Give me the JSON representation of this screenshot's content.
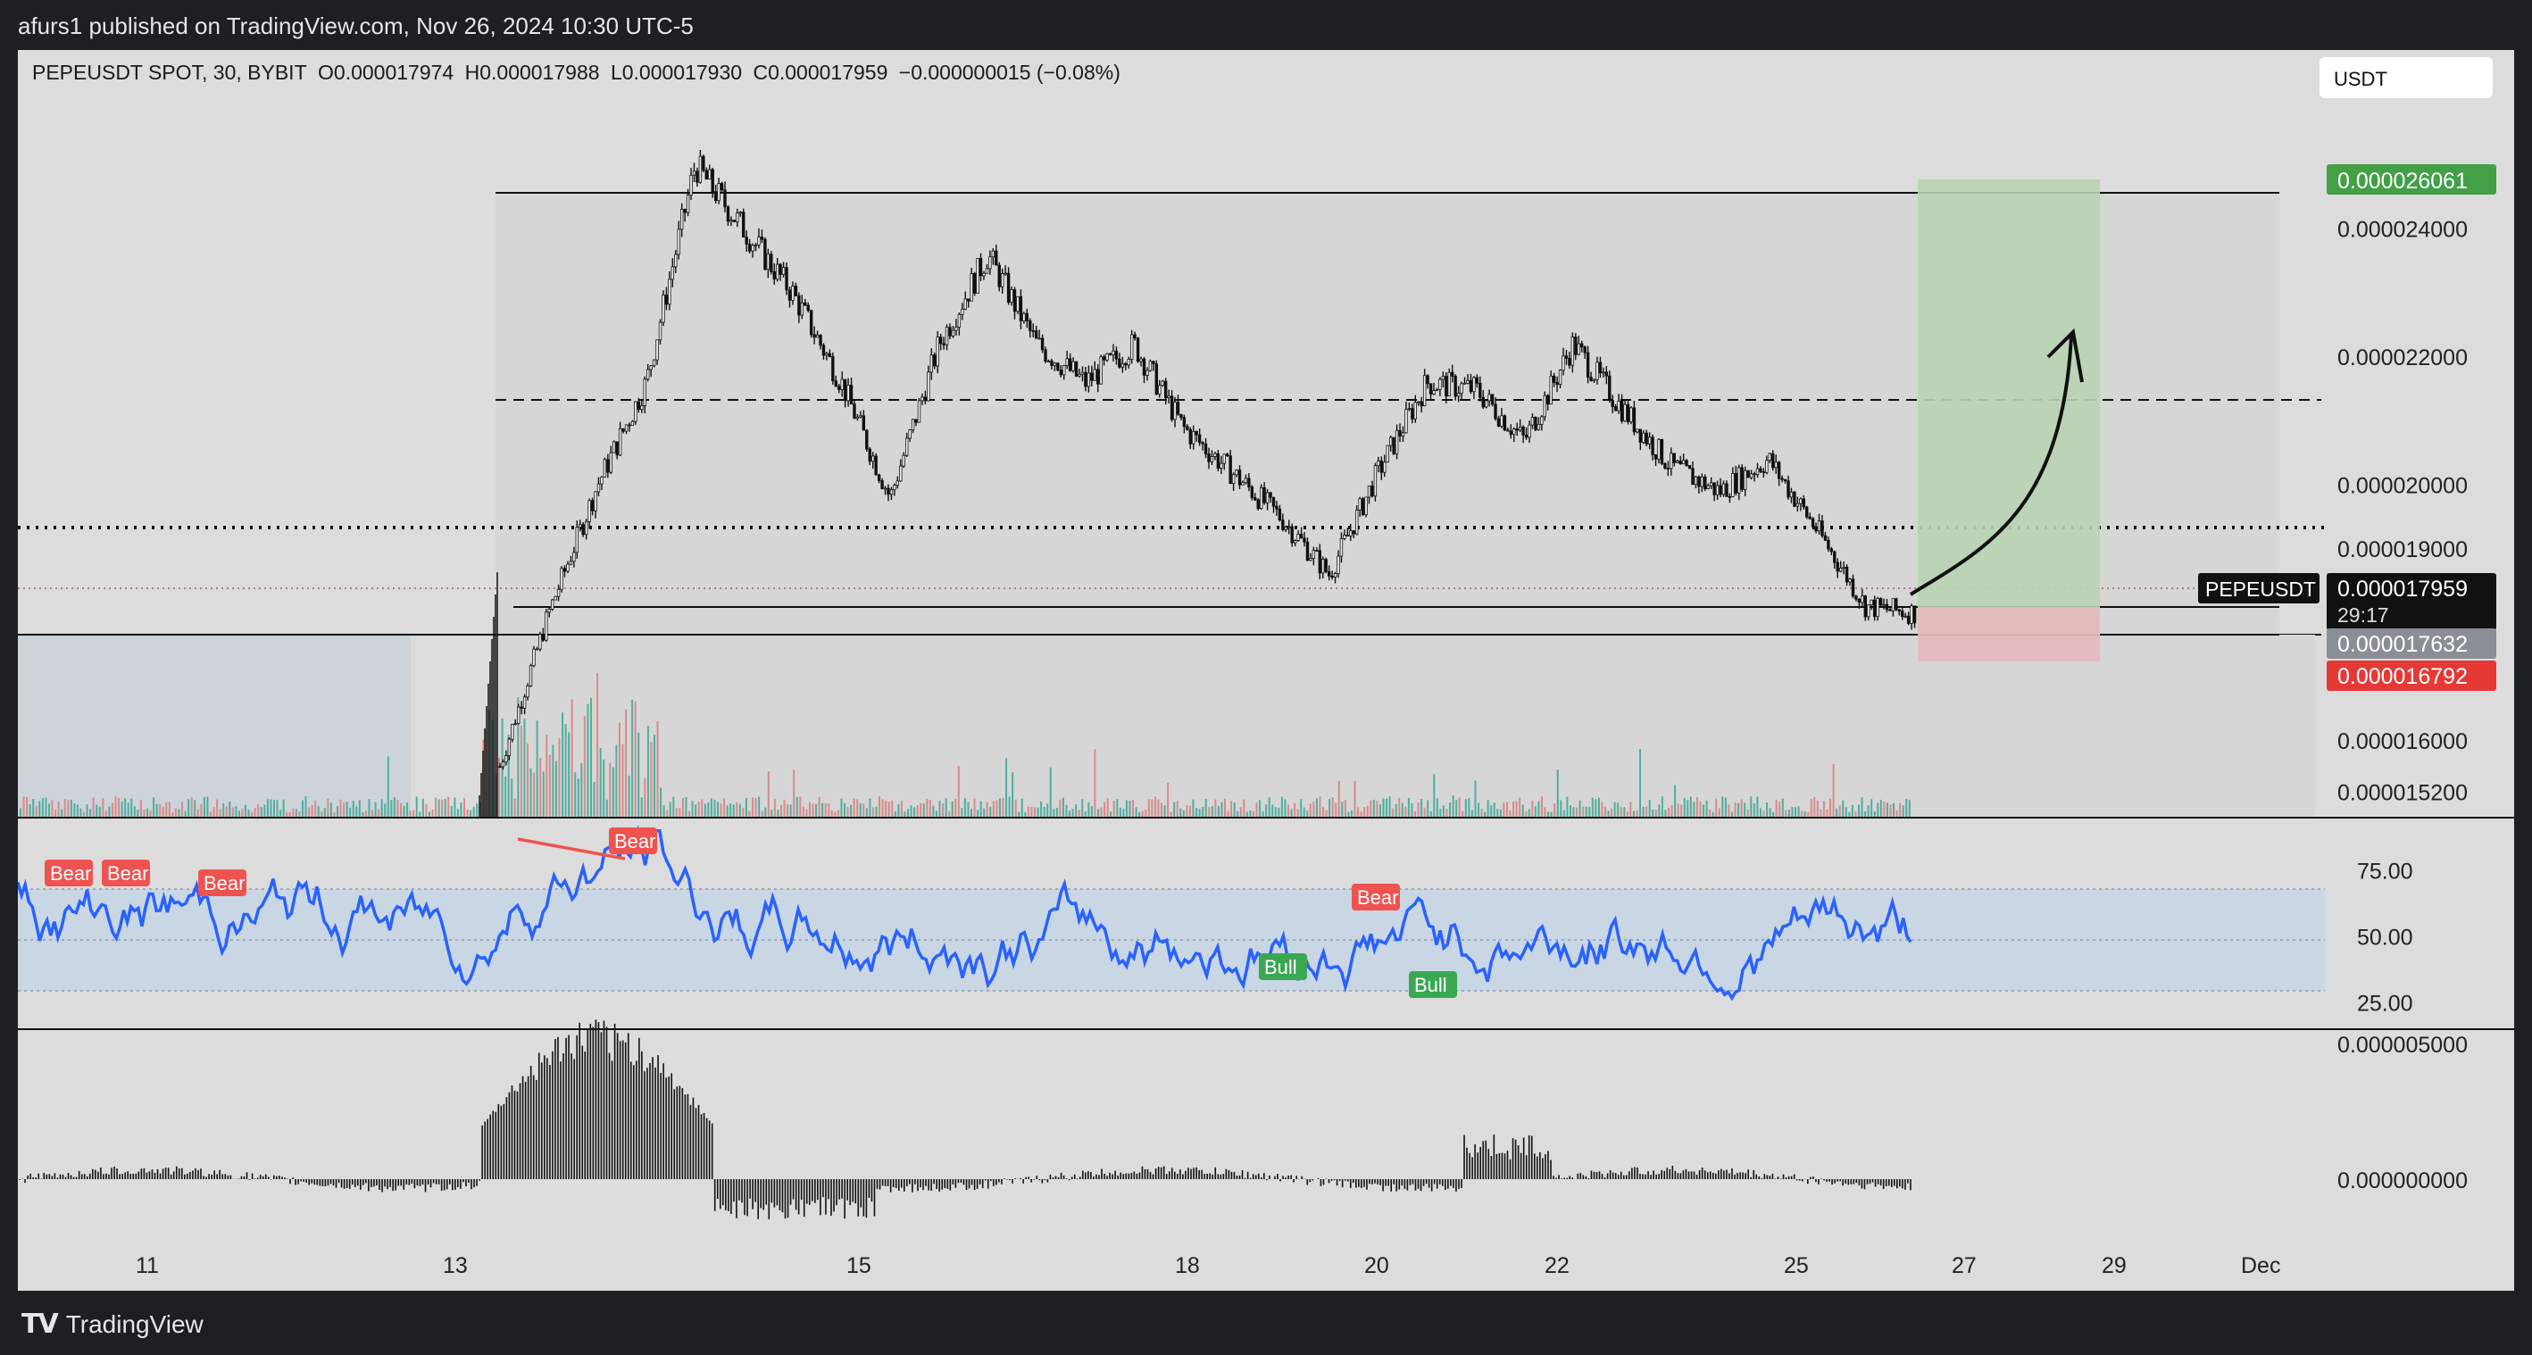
{
  "published": "afurs1 published on TradingView.com, Nov 26, 2024 10:30 UTC-5",
  "brand": "TradingView",
  "header": {
    "symbol": "PEPEUSDT SPOT, 30, BYBIT",
    "o_label": "O",
    "o": "0.000017974",
    "h_label": "H",
    "h": "0.000017988",
    "l_label": "L",
    "l": "0.000017930",
    "c_label": "C",
    "c": "0.000017959",
    "change": "−0.000000015 (−0.08%)"
  },
  "currency": "USDT",
  "colors": {
    "bg": "#dcdcdc",
    "candle": "#111111",
    "target_zone": "#b9d7b4",
    "stop_zone": "#e9b9bd",
    "rsi_line": "#2962ff",
    "rsi_band": "#c9d6e3",
    "bear_label": "#ef5350",
    "bull_label": "#3aa853",
    "vol_up": "#4fae9e",
    "vol_down": "#d98a8a",
    "price_up_tag": "#43a047",
    "price_down_tag": "#e53935"
  },
  "price_tags": {
    "target": "0.000026061",
    "symbol_tag": "PEPEUSDT",
    "last": "0.000017959",
    "countdown": "29:17",
    "entry": "0.000017632",
    "stop": "0.000016792"
  },
  "chart_data": [
    {
      "type": "candlestick",
      "name": "price",
      "series": [
        {
          "name": "PEPEUSDT",
          "x": [
            "Nov 13",
            "Nov 13",
            "Nov 13",
            "Nov 14",
            "Nov 14",
            "Nov 14",
            "Nov 15",
            "Nov 15",
            "Nov 16",
            "Nov 16",
            "Nov 17",
            "Nov 17",
            "Nov 18",
            "Nov 18",
            "Nov 19",
            "Nov 19",
            "Nov 20",
            "Nov 20",
            "Nov 21",
            "Nov 21",
            "Nov 22",
            "Nov 22",
            "Nov 23",
            "Nov 23",
            "Nov 24",
            "Nov 24",
            "Nov 25",
            "Nov 25",
            "Nov 26",
            "Nov 26"
          ],
          "close": [
            1.56e-05,
            1.8e-05,
            2e-05,
            2.16e-05,
            2.5e-05,
            2.4e-05,
            2.3e-05,
            2.16e-05,
            1.98e-05,
            2.22e-05,
            2.36e-05,
            2.22e-05,
            2.16e-05,
            2.22e-05,
            2.09e-05,
            2.02e-05,
            1.95e-05,
            1.86e-05,
            2.02e-05,
            2.16e-05,
            2.15e-05,
            2.07e-05,
            2.22e-05,
            2.12e-05,
            2.03e-05,
            1.99e-05,
            2.04e-05,
            1.93e-05,
            1.81e-05,
            1.8e-05
          ]
        }
      ],
      "y_ticks": [
        "0.000024000",
        "0.000022000",
        "0.000020000",
        "0.000019000",
        "0.000016000",
        "0.000015200"
      ],
      "x_ticks": [
        "11",
        "13",
        "15",
        "18",
        "20",
        "22",
        "25",
        "27",
        "29",
        "Dec"
      ],
      "ylim": [
        1.48e-05,
        2.68e-05
      ],
      "levels": {
        "range_top": 2.59e-05,
        "range_mid_dashed": 2.13e-05,
        "dotted": 1.9e-05,
        "range_bottom": 1.77e-05,
        "entry": 1.76e-05,
        "target": 2.6061e-05,
        "stop": 1.6792e-05
      },
      "annotations": [
        "long position box",
        "curved arrow up"
      ]
    },
    {
      "type": "line",
      "name": "rsi",
      "y_ticks": [
        "75.00",
        "50.00",
        "25.00"
      ],
      "ylim": [
        15,
        95
      ],
      "band": [
        30,
        70
      ],
      "labels": [
        {
          "text": "Bear",
          "x": "Nov 10",
          "y": 67
        },
        {
          "text": "Bear",
          "x": "Nov 10",
          "y": 67
        },
        {
          "text": "Bear",
          "x": "Nov 12",
          "y": 63
        },
        {
          "text": "Bear",
          "x": "Nov 14",
          "y": 87
        },
        {
          "text": "Bear",
          "x": "Nov 20",
          "y": 60
        },
        {
          "text": "Bull",
          "x": "Nov 19",
          "y": 27
        },
        {
          "text": "Bull",
          "x": "Nov 21",
          "y": 22
        }
      ]
    },
    {
      "type": "bar",
      "name": "oscillator",
      "y_ticks": [
        "0.000005000",
        "0.000000000"
      ]
    }
  ]
}
